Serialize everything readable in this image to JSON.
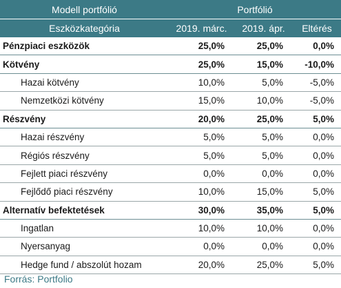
{
  "header": {
    "model_title": "Modell portfólió",
    "portfolio_title": "Portfólió",
    "category_label": "Eszközkategória",
    "col_march": "2019. márc.",
    "col_april": "2019. ápr.",
    "col_diff": "Eltérés"
  },
  "rows": [
    {
      "label": "Pénzpiaci eszközök",
      "march": "25,0%",
      "april": "25,0%",
      "diff": "0,0%"
    },
    {
      "label": "Kötvény",
      "march": "25,0%",
      "april": "15,0%",
      "diff": "-10,0%"
    },
    {
      "label": "Hazai kötvény",
      "march": "10,0%",
      "april": "5,0%",
      "diff": "-5,0%"
    },
    {
      "label": "Nemzetközi kötvény",
      "march": "15,0%",
      "april": "10,0%",
      "diff": "-5,0%"
    },
    {
      "label": "Részvény",
      "march": "20,0%",
      "april": "25,0%",
      "diff": "5,0%"
    },
    {
      "label": "Hazai részvény",
      "march": "5,0%",
      "april": "5,0%",
      "diff": "0,0%"
    },
    {
      "label": "Régiós részvény",
      "march": "5,0%",
      "april": "5,0%",
      "diff": "0,0%"
    },
    {
      "label": "Fejlett piaci részvény",
      "march": "0,0%",
      "april": "0,0%",
      "diff": "0,0%"
    },
    {
      "label": "Fejlődő piaci részvény",
      "march": "10,0%",
      "april": "15,0%",
      "diff": "5,0%"
    },
    {
      "label": "Alternatív befektetések",
      "march": "30,0%",
      "april": "35,0%",
      "diff": "5,0%"
    },
    {
      "label": "Ingatlan",
      "march": "10,0%",
      "april": "10,0%",
      "diff": "0,0%"
    },
    {
      "label": "Nyersanyag",
      "march": "0,0%",
      "april": "0,0%",
      "diff": "0,0%"
    },
    {
      "label": "Hedge fund / abszolút hozam",
      "march": "20,0%",
      "april": "25,0%",
      "diff": "5,0%"
    }
  ],
  "source": "Forrás: Portfolio",
  "colors": {
    "header_bg": "#3c7a86",
    "header_text": "#ffffff",
    "source_text": "#3c7a86"
  }
}
